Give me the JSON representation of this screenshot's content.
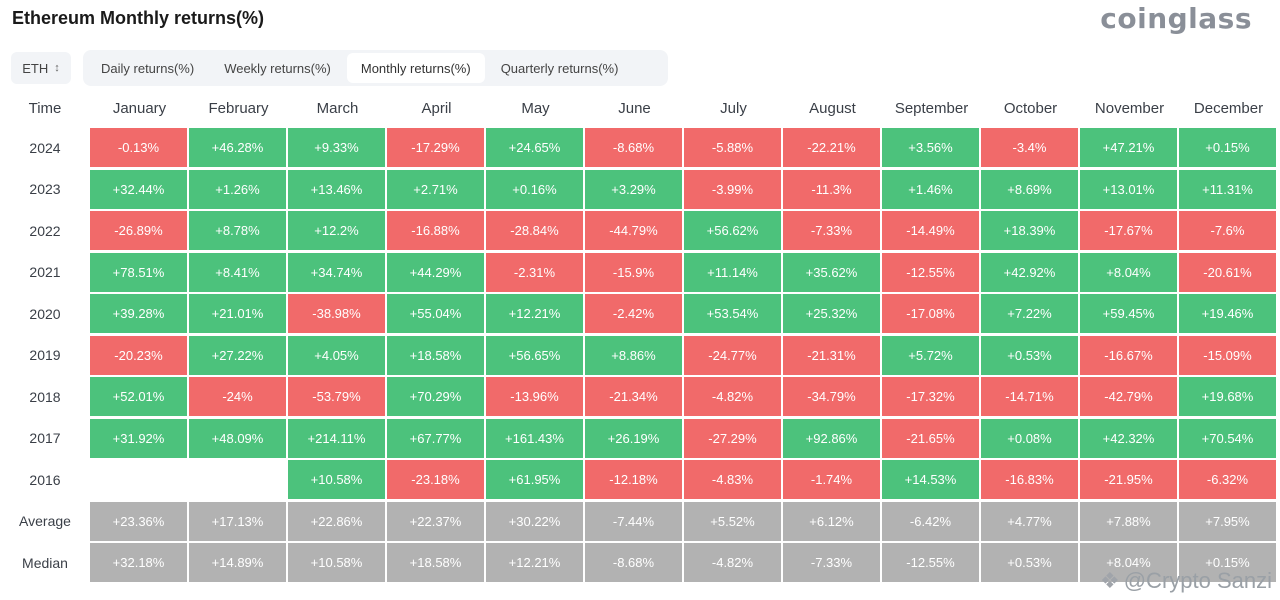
{
  "header": {
    "title": "Ethereum Monthly returns(%)",
    "logo_text": "coinglass"
  },
  "asset_select": {
    "value": "ETH",
    "icon": "chevron-updown-icon"
  },
  "tabs": [
    {
      "label": "Daily returns(%)",
      "active": false
    },
    {
      "label": "Weekly returns(%)",
      "active": false
    },
    {
      "label": "Monthly returns(%)",
      "active": true
    },
    {
      "label": "Quarterly returns(%)",
      "active": false
    }
  ],
  "colors": {
    "positive": "#4cc27c",
    "negative": "#f16a6a",
    "stat": "#b2b2b2"
  },
  "table": {
    "corner_label": "Time",
    "months": [
      "January",
      "February",
      "March",
      "April",
      "May",
      "June",
      "July",
      "August",
      "September",
      "October",
      "November",
      "December"
    ],
    "rows": [
      {
        "year": "2024",
        "values": [
          "-0.13%",
          "+46.28%",
          "+9.33%",
          "-17.29%",
          "+24.65%",
          "-8.68%",
          "-5.88%",
          "-22.21%",
          "+3.56%",
          "-3.4%",
          "+47.21%",
          "+0.15%"
        ]
      },
      {
        "year": "2023",
        "values": [
          "+32.44%",
          "+1.26%",
          "+13.46%",
          "+2.71%",
          "+0.16%",
          "+3.29%",
          "-3.99%",
          "-11.3%",
          "+1.46%",
          "+8.69%",
          "+13.01%",
          "+11.31%"
        ]
      },
      {
        "year": "2022",
        "values": [
          "-26.89%",
          "+8.78%",
          "+12.2%",
          "-16.88%",
          "-28.84%",
          "-44.79%",
          "+56.62%",
          "-7.33%",
          "-14.49%",
          "+18.39%",
          "-17.67%",
          "-7.6%"
        ]
      },
      {
        "year": "2021",
        "values": [
          "+78.51%",
          "+8.41%",
          "+34.74%",
          "+44.29%",
          "-2.31%",
          "-15.9%",
          "+11.14%",
          "+35.62%",
          "-12.55%",
          "+42.92%",
          "+8.04%",
          "-20.61%"
        ]
      },
      {
        "year": "2020",
        "values": [
          "+39.28%",
          "+21.01%",
          "-38.98%",
          "+55.04%",
          "+12.21%",
          "-2.42%",
          "+53.54%",
          "+25.32%",
          "-17.08%",
          "+7.22%",
          "+59.45%",
          "+19.46%"
        ]
      },
      {
        "year": "2019",
        "values": [
          "-20.23%",
          "+27.22%",
          "+4.05%",
          "+18.58%",
          "+56.65%",
          "+8.86%",
          "-24.77%",
          "-21.31%",
          "+5.72%",
          "+0.53%",
          "-16.67%",
          "-15.09%"
        ]
      },
      {
        "year": "2018",
        "values": [
          "+52.01%",
          "-24%",
          "-53.79%",
          "+70.29%",
          "-13.96%",
          "-21.34%",
          "-4.82%",
          "-34.79%",
          "-17.32%",
          "-14.71%",
          "-42.79%",
          "+19.68%"
        ]
      },
      {
        "year": "2017",
        "values": [
          "+31.92%",
          "+48.09%",
          "+214.11%",
          "+67.77%",
          "+161.43%",
          "+26.19%",
          "-27.29%",
          "+92.86%",
          "-21.65%",
          "+0.08%",
          "+42.32%",
          "+70.54%"
        ]
      },
      {
        "year": "2016",
        "values": [
          "",
          "",
          "+10.58%",
          "-23.18%",
          "+61.95%",
          "-12.18%",
          "-4.83%",
          "-1.74%",
          "+14.53%",
          "-16.83%",
          "-21.95%",
          "-6.32%"
        ]
      }
    ],
    "stats": [
      {
        "label": "Average",
        "values": [
          "+23.36%",
          "+17.13%",
          "+22.86%",
          "+22.37%",
          "+30.22%",
          "-7.44%",
          "+5.52%",
          "+6.12%",
          "-6.42%",
          "+4.77%",
          "+7.88%",
          "+7.95%"
        ]
      },
      {
        "label": "Median",
        "values": [
          "+32.18%",
          "+14.89%",
          "+10.58%",
          "+18.58%",
          "+12.21%",
          "-8.68%",
          "-4.82%",
          "-7.33%",
          "-12.55%",
          "+0.53%",
          "+8.04%",
          "+0.15%"
        ]
      }
    ]
  },
  "watermark": {
    "text": "@Crypto Sanzi",
    "icon": "diamond-logo-icon"
  }
}
